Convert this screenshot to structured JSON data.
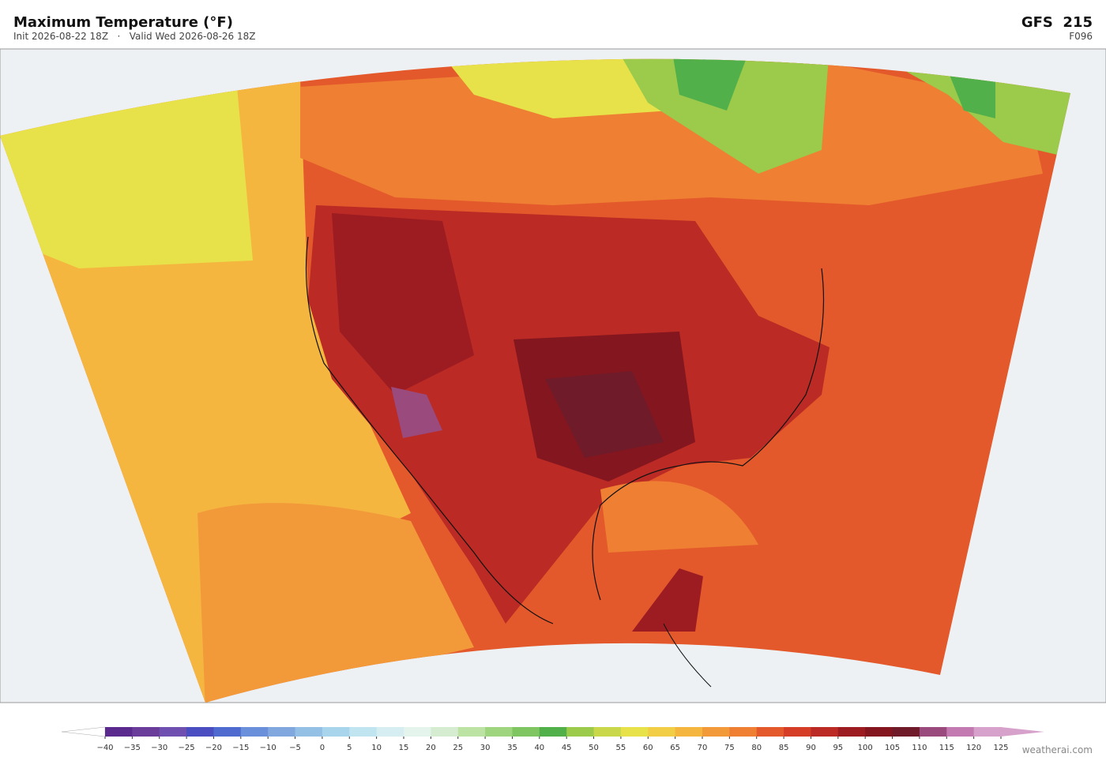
{
  "header": {
    "title": "Maximum Temperature  (°F)",
    "subtitle": "Init 2026-08-22 18Z   ·   Valid Wed 2026-08-26 18Z",
    "model": "GFS  215",
    "forecast_hour": "F096"
  },
  "colorbar": {
    "ticks": [
      "−40",
      "−35",
      "−30",
      "−25",
      "−20",
      "−15",
      "−10",
      "−5",
      "0",
      "5",
      "10",
      "15",
      "20",
      "25",
      "30",
      "35",
      "40",
      "45",
      "50",
      "55",
      "60",
      "65",
      "70",
      "75",
      "80",
      "85",
      "90",
      "95",
      "100",
      "105",
      "110",
      "115",
      "120",
      "125"
    ],
    "colors": [
      "#5b2a8f",
      "#6a3d9a",
      "#6f4fb0",
      "#4a4ec0",
      "#4f6bd0",
      "#6a8fdb",
      "#80a8df",
      "#95c0e6",
      "#a8d4ec",
      "#c0e4f0",
      "#d6eef2",
      "#e4f4ec",
      "#d6ecd0",
      "#bde3a4",
      "#a0d580",
      "#7fc663",
      "#52b04a",
      "#9cca4a",
      "#c9d84a",
      "#e8e24a",
      "#f2cd46",
      "#f5b640",
      "#f29a3a",
      "#ee7f33",
      "#e4592b",
      "#d53d27",
      "#bb2a24",
      "#9c1c22",
      "#84161f",
      "#6f1b2a",
      "#9a4a7c",
      "#c27ab0",
      "#d6a2cc"
    ],
    "under_color": "#ffffff",
    "over_color": "#d6a2cc"
  },
  "credit": "weatherai.com"
}
